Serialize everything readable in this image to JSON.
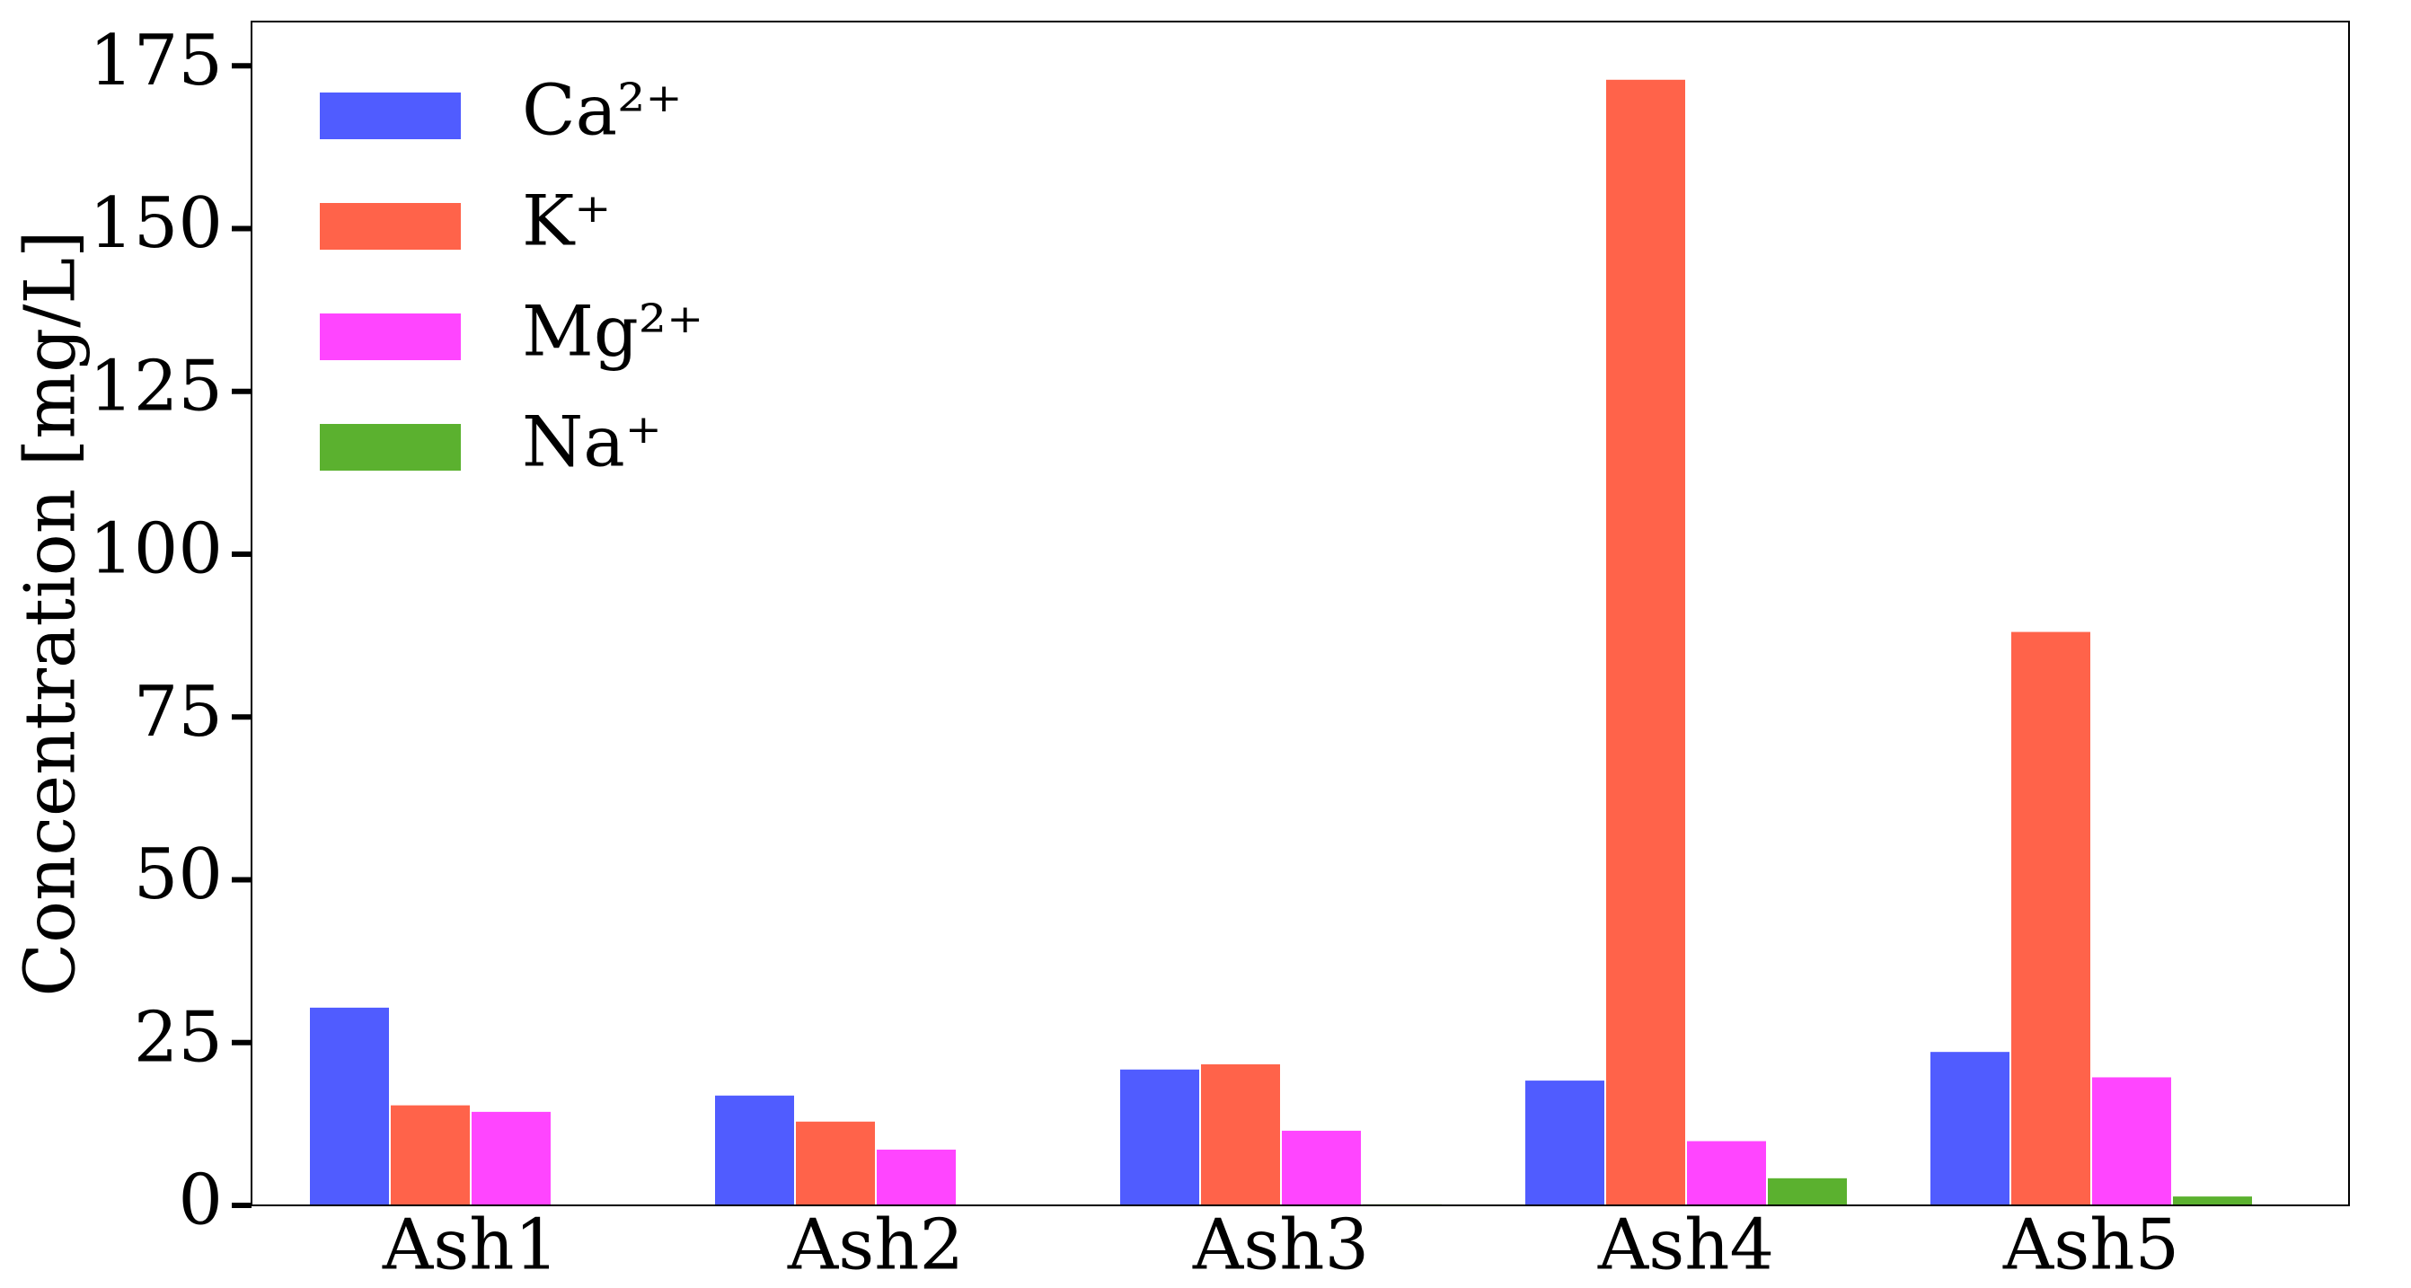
{
  "chart_data": {
    "type": "bar",
    "y_label": "Concentration [mg/L]",
    "categories": [
      "Ash1",
      "Ash2",
      "Ash3",
      "Ash4",
      "Ash5"
    ],
    "series": [
      {
        "name": "Ca²⁺",
        "color": "#505cff",
        "values": [
          30.5,
          17,
          21,
          19.3,
          23.7
        ]
      },
      {
        "name": "K⁺",
        "color": "#ff634a",
        "values": [
          15.5,
          13,
          21.8,
          173,
          88.2
        ]
      },
      {
        "name": "Mg²⁺",
        "color": "#ff45ff",
        "values": [
          14.5,
          8.7,
          11.6,
          10,
          19.8
        ]
      },
      {
        "name": "Na⁺",
        "color": "#5bb12f",
        "values": [
          0,
          0.2,
          0.3,
          4.3,
          1.5
        ]
      }
    ],
    "ylim": [
      0,
      181.8
    ],
    "yticks": [
      0,
      25,
      50,
      75,
      100,
      125,
      150,
      175
    ],
    "legend": "upper left"
  }
}
